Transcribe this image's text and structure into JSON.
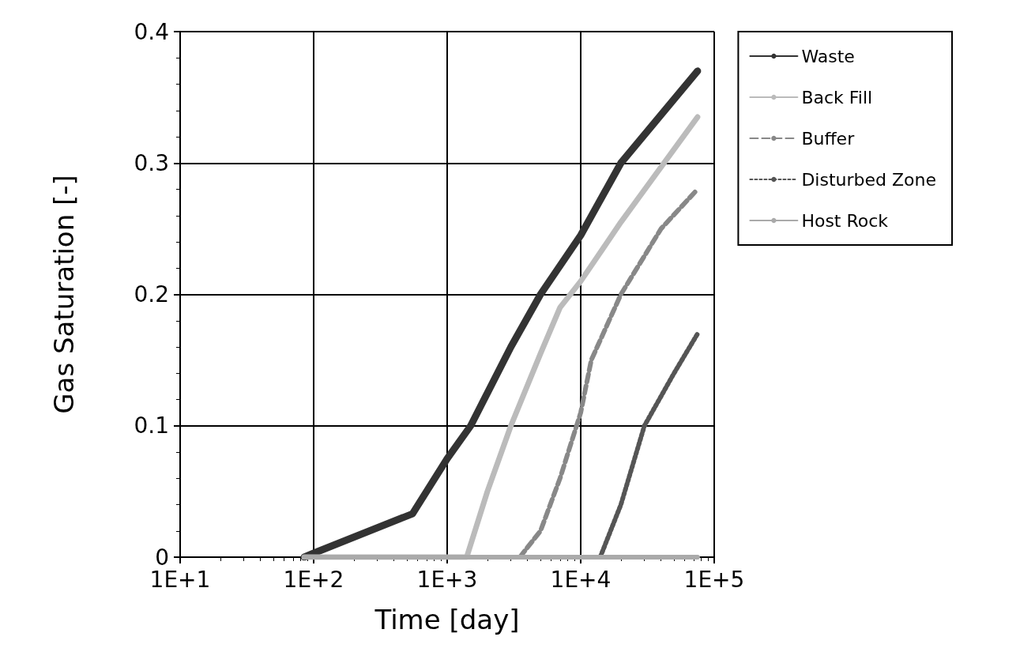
{
  "chart_data": {
    "type": "line",
    "xlabel": "Time [day]",
    "ylabel": "Gas Saturation [-]",
    "log": "x",
    "xlim": [
      10,
      100000
    ],
    "xticks": [
      {
        "value": 10,
        "label": "1E+1"
      },
      {
        "value": 100,
        "label": "1E+2"
      },
      {
        "value": 1000,
        "label": "1E+3"
      },
      {
        "value": 10000,
        "label": "1E+4"
      },
      {
        "value": 100000,
        "label": "1E+5"
      }
    ],
    "ylim": [
      0,
      0.4
    ],
    "yticks": [
      0,
      0.1,
      0.2,
      0.3,
      0.4
    ],
    "grid": true,
    "legend": "top right",
    "marker": "none",
    "series": [
      {
        "name": "Waste",
        "color": "#333333",
        "line_style": "solid",
        "x": [
          85,
          100,
          550,
          1000,
          1500,
          3000,
          5000,
          10000,
          20000,
          75000
        ],
        "values": [
          0,
          0.003,
          0.033,
          0.075,
          0.1,
          0.16,
          0.2,
          0.245,
          0.3,
          0.37
        ]
      },
      {
        "name": "Back Fill",
        "color": "#bbbbbb",
        "line_style": "solid",
        "x": [
          85,
          1400,
          2000,
          3000,
          5000,
          7000,
          10000,
          20000,
          75000
        ],
        "values": [
          0,
          0,
          0.05,
          0.1,
          0.155,
          0.19,
          0.21,
          0.255,
          0.335
        ]
      },
      {
        "name": "Buffer",
        "color": "#888888",
        "line_style": "dashed",
        "x": [
          3500,
          5000,
          7000,
          10000,
          12000,
          20000,
          40000,
          75000
        ],
        "values": [
          0,
          0.02,
          0.06,
          0.11,
          0.15,
          0.2,
          0.25,
          0.28
        ]
      },
      {
        "name": "Disturbed Zone",
        "color": "#555555",
        "line_style": "dotted",
        "x": [
          14000,
          20000,
          30000,
          50000,
          75000
        ],
        "values": [
          0,
          0.04,
          0.1,
          0.14,
          0.17
        ]
      },
      {
        "name": "Host Rock",
        "color": "#aaaaaa",
        "line_style": "solid",
        "x": [
          85,
          75000
        ],
        "values": [
          0,
          0
        ]
      }
    ]
  }
}
